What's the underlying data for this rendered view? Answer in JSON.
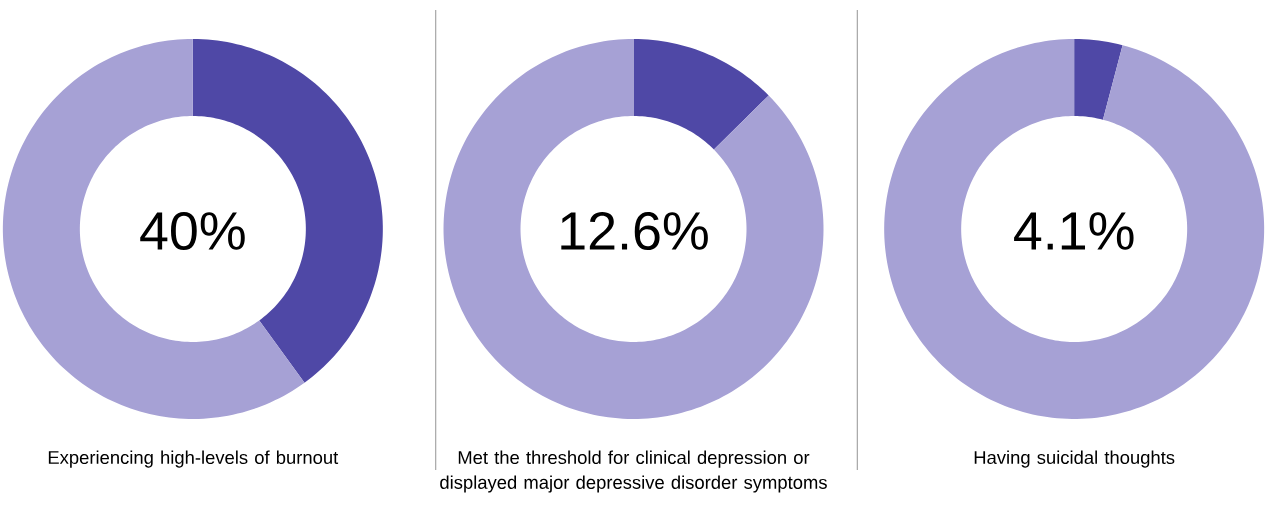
{
  "chart_data": [
    {
      "type": "donut",
      "title": "Experiencing high-levels of burnout",
      "categories": [
        null,
        null
      ],
      "values": [
        40,
        60
      ],
      "colors": [
        "#4f48a6",
        "#a6a1d5"
      ],
      "annotations": [
        "40%"
      ]
    },
    {
      "type": "donut",
      "title": "Met the threshold for clinical depression or displayed major depressive disorder symptoms",
      "categories": [
        null,
        null
      ],
      "values": [
        12.6,
        87.4
      ],
      "colors": [
        "#4f48a6",
        "#a6a1d5"
      ],
      "annotations": [
        "12.6%"
      ]
    },
    {
      "type": "donut",
      "title": "Having suicidal thoughts",
      "categories": [
        null,
        null
      ],
      "values": [
        4.1,
        95.9
      ],
      "colors": [
        "#4f48a6",
        "#a6a1d5"
      ],
      "annotations": [
        "4.1%"
      ]
    }
  ]
}
